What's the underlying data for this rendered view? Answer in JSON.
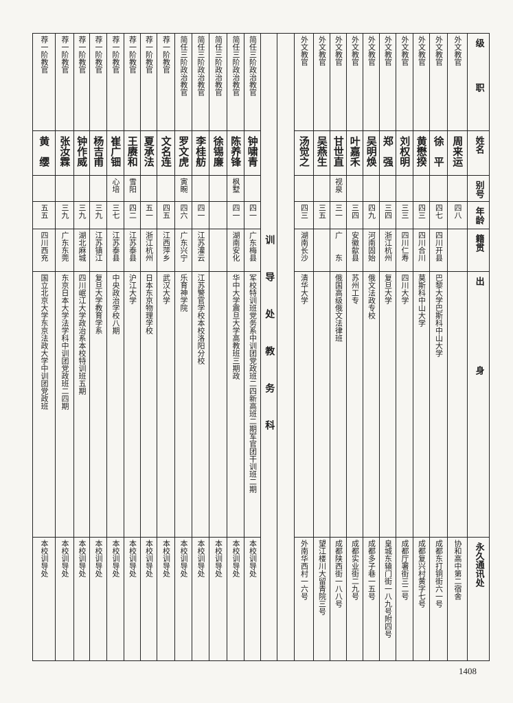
{
  "headers": {
    "rank": "级　　　　职",
    "name": "姓名",
    "alias": "别号",
    "age": "年龄",
    "origin": "籍贯",
    "education": "出　　　　　　　　　身",
    "address": "永久通讯处"
  },
  "section_title": "训导处教务科",
  "right_entries": [
    {
      "rank": "外文教官",
      "name": "周来运",
      "alias": "",
      "age": "四八",
      "origin": "",
      "education": "",
      "address": "协和高中第二宿舍"
    },
    {
      "rank": "外文教官",
      "name": "徐　平",
      "alias": "",
      "age": "四七",
      "origin": "四川开县",
      "education": "巴黎大学巴斯科中山大学",
      "address": "成都东打铜街六一号"
    },
    {
      "rank": "外文教官",
      "name": "黄懋揆",
      "alias": "",
      "age": "四三",
      "origin": "四川合川",
      "education": "莫斯科中山大学",
      "address": "成都复兴村黄字七号"
    },
    {
      "rank": "外文教官",
      "name": "刘权明",
      "alias": "",
      "age": "三三",
      "origin": "四川仁寿",
      "education": "四川大学",
      "address": "成都厅署街三二号"
    },
    {
      "rank": "外文教官",
      "name": "郑　强",
      "alias": "",
      "age": "三四",
      "origin": "浙江杭州",
      "education": "复旦大学",
      "address": "皇城东辕门街一八九号附四号"
    },
    {
      "rank": "外文教官",
      "name": "吴明焕",
      "alias": "",
      "age": "四九",
      "origin": "河南固始",
      "education": "俄文法政专校",
      "address": "成都多子巷一五号"
    },
    {
      "rank": "外文教官",
      "name": "叶嘉禾",
      "alias": "",
      "age": "三四",
      "origin": "安徽歙县",
      "education": "苏州工专",
      "address": "成都实业街二九号"
    },
    {
      "rank": "外文教官",
      "name": "甘世直",
      "alias": "视泉",
      "age": "三一",
      "origin": "广　　东",
      "education": "俄国高级俄文法律班",
      "address": "成都陕西街一八八号"
    },
    {
      "rank": "外文教官",
      "name": "吴燕生",
      "alias": "",
      "age": "三五",
      "origin": "",
      "education": "",
      "address": "望江楼川大留青院三号"
    },
    {
      "rank": "外文教官",
      "name": "汤觉之",
      "alias": "",
      "age": "四三",
      "origin": "湖南长沙",
      "education": "清华大学",
      "address": "外南华西村一六号"
    }
  ],
  "left_entries": [
    {
      "rank": "简任三阶政治教官",
      "name": "钟啸青",
      "alias": "",
      "age": "四一",
      "origin": "广东梅县",
      "education": "军校特训班党务系中训团党政班二四新高班二期军官团干训班二期",
      "address": "本校训导处"
    },
    {
      "rank": "简任三阶政治教官",
      "name": "陈养锋",
      "alias": "枫墅",
      "age": "四一",
      "origin": "湖南安化",
      "education": "华中大学震旦大学高教班三期政",
      "address": "本校训导处"
    },
    {
      "rank": "简任三阶政治教官",
      "name": "徐锡廉",
      "alias": "",
      "age": "",
      "origin": "",
      "education": "",
      "address": "本校训导处"
    },
    {
      "rank": "简任三阶政治教官",
      "name": "李桂舫",
      "alias": "",
      "age": "四一",
      "origin": "江苏灌云",
      "education": "江苏警官学校本校洛阳分校",
      "address": "本校训导处"
    },
    {
      "rank": "简任三阶政治教官",
      "name": "罗文虎",
      "alias": "寅畹",
      "age": "四六",
      "origin": "广东兴宁",
      "education": "乐育神学院",
      "address": "本校训导处"
    },
    {
      "rank": "荐一阶教官",
      "name": "文名连",
      "alias": "",
      "age": "四五",
      "origin": "江西萍乡",
      "education": "武汉大学",
      "address": "本校训导处"
    },
    {
      "rank": "荐一阶教官",
      "name": "夏承法",
      "alias": "",
      "age": "五一",
      "origin": "浙江杭州",
      "education": "日本东京物理学校",
      "address": "本校训导处"
    },
    {
      "rank": "荐一阶教官",
      "name": "王赓和",
      "alias": "雪阳",
      "age": "四二",
      "origin": "江苏泰县",
      "education": "沪江大学",
      "address": "本校训导处"
    },
    {
      "rank": "荐一阶教官",
      "name": "崔广钿",
      "alias": "心培",
      "age": "三七",
      "origin": "江苏泰县",
      "education": "中央政治学校八期",
      "address": "本校训导处"
    },
    {
      "rank": "荐一阶教官",
      "name": "杨吉甫",
      "alias": "",
      "age": "三九",
      "origin": "江苏镇江",
      "education": "复旦大学教育学系",
      "address": "本校训导处"
    },
    {
      "rank": "荐一阶教官",
      "name": "钟作威",
      "alias": "",
      "age": "三九",
      "origin": "湖北麻城",
      "education": "四川岷江大学政治系本校特训班五期",
      "address": "本校训导处"
    },
    {
      "rank": "荐一阶教官",
      "name": "张汝霖",
      "alias": "",
      "age": "三九",
      "origin": "广东东莞",
      "education": "东京日本大学法学科中训团党政班二四期",
      "address": "本校训导处"
    },
    {
      "rank": "荐一阶教官",
      "name": "黄　缨",
      "alias": "",
      "age": "五五",
      "origin": "四川西充",
      "education": "国立北京大学东京法政大学中训团党政班",
      "address": "本校训导处"
    }
  ],
  "page_number": "1408"
}
